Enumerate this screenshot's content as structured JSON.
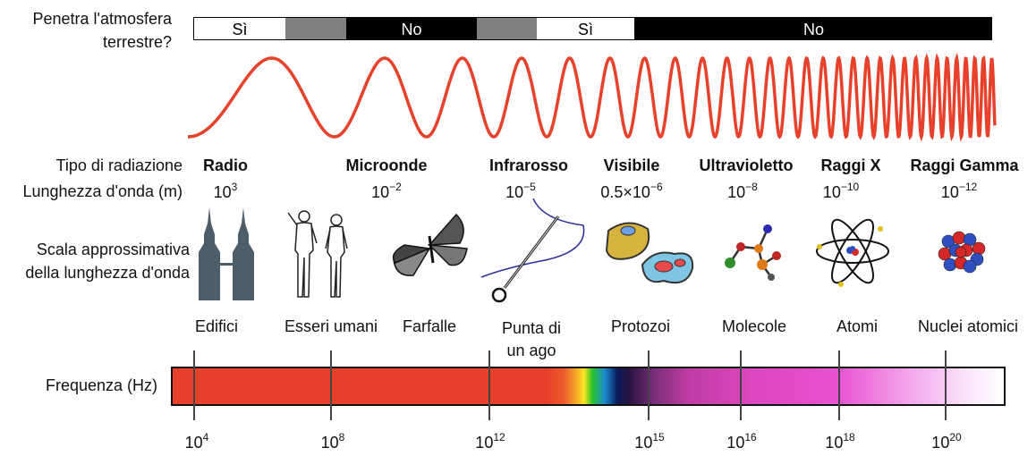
{
  "atmosphere": {
    "question_line1": "Penetra l'atmosfera",
    "question_line2": "terrestre?",
    "segments": [
      {
        "label": "Sì",
        "kind": "yes"
      },
      {
        "label": "",
        "kind": "partial"
      },
      {
        "label": "No",
        "kind": "no"
      },
      {
        "label": "",
        "kind": "partial"
      },
      {
        "label": "Sì",
        "kind": "yes"
      },
      {
        "label": "No",
        "kind": "no"
      }
    ]
  },
  "row_labels": {
    "type": "Tipo di radiazione",
    "wavelength": "Lunghezza d'onda (m)",
    "scale_line1": "Scala approssimativa",
    "scale_line2": "della lunghezza d'onda",
    "frequency": "Frequenza (Hz)"
  },
  "radiation_types": [
    {
      "name": "Radio",
      "wl_base": "10",
      "wl_exp": "3"
    },
    {
      "name": "Microonde",
      "wl_base": "10",
      "wl_exp": "−2"
    },
    {
      "name": "Infrarosso",
      "wl_base": "10",
      "wl_exp": "−5"
    },
    {
      "name": "Visibile",
      "wl_base": "0.5×10",
      "wl_exp": "−6"
    },
    {
      "name": "Ultravioletto",
      "wl_base": "10",
      "wl_exp": "−8"
    },
    {
      "name": "Raggi X",
      "wl_base": "10",
      "wl_exp": "−10"
    },
    {
      "name": "Raggi Gamma",
      "wl_base": "10",
      "wl_exp": "−12"
    }
  ],
  "scale_objects": [
    {
      "label": "Edifici",
      "icon": "buildings-icon"
    },
    {
      "label": "Esseri umani",
      "icon": "humans-icon"
    },
    {
      "label": "Farfalle",
      "icon": "butterfly-icon"
    },
    {
      "label": "Punta di un ago",
      "label_line1": "Punta di",
      "label_line2": "un ago",
      "icon": "needle-icon"
    },
    {
      "label": "Protozoi",
      "icon": "protozoa-icon"
    },
    {
      "label": "Molecole",
      "icon": "molecule-icon"
    },
    {
      "label": "Atomi",
      "icon": "atom-icon"
    },
    {
      "label": "Nuclei atomici",
      "icon": "nucleus-icon"
    }
  ],
  "frequencies": [
    {
      "base": "10",
      "exp": "4"
    },
    {
      "base": "10",
      "exp": "8"
    },
    {
      "base": "10",
      "exp": "12"
    },
    {
      "base": "10",
      "exp": "15"
    },
    {
      "base": "10",
      "exp": "16"
    },
    {
      "base": "10",
      "exp": "18"
    },
    {
      "base": "10",
      "exp": "20"
    }
  ],
  "colors": {
    "wave": "#e8412b",
    "yes_fill": "#ffffff",
    "partial_fill": "#7f7f7f",
    "no_fill": "#000000"
  }
}
